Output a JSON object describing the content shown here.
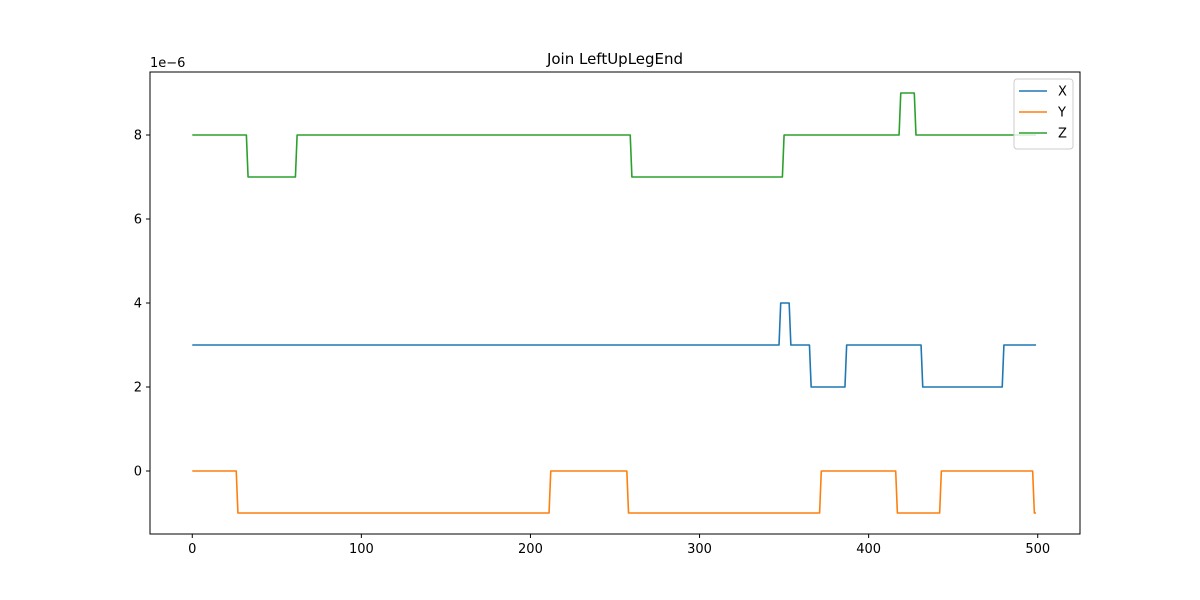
{
  "chart_data": {
    "type": "line",
    "title": "Join LeftUpLegEnd",
    "xlabel": "",
    "ylabel": "",
    "y_offset_text": "1e−6",
    "xlim": [
      -25,
      525
    ],
    "ylim": [
      -1.5,
      9.5
    ],
    "xticks": [
      0,
      100,
      200,
      300,
      400,
      500
    ],
    "yticks": [
      0,
      2,
      4,
      6,
      8
    ],
    "legend_position": "top-right",
    "grid": false,
    "series": [
      {
        "name": "X",
        "color": "#1f77b4",
        "points": [
          [
            0,
            3
          ],
          [
            347,
            3
          ],
          [
            348,
            4
          ],
          [
            353,
            4
          ],
          [
            354,
            3
          ],
          [
            365,
            3
          ],
          [
            366,
            2
          ],
          [
            386,
            2
          ],
          [
            387,
            3
          ],
          [
            431,
            3
          ],
          [
            432,
            2
          ],
          [
            479,
            2
          ],
          [
            480,
            3
          ],
          [
            499,
            3
          ]
        ]
      },
      {
        "name": "Y",
        "color": "#ff7f0e",
        "points": [
          [
            0,
            0
          ],
          [
            26,
            0
          ],
          [
            27,
            -1
          ],
          [
            211,
            -1
          ],
          [
            212,
            0
          ],
          [
            257,
            0
          ],
          [
            258,
            -1
          ],
          [
            371,
            -1
          ],
          [
            372,
            0
          ],
          [
            416,
            0
          ],
          [
            417,
            -1
          ],
          [
            442,
            -1
          ],
          [
            443,
            0
          ],
          [
            497,
            0
          ],
          [
            498,
            -1
          ],
          [
            499,
            -1
          ]
        ]
      },
      {
        "name": "Z",
        "color": "#2ca02c",
        "points": [
          [
            0,
            8
          ],
          [
            32,
            8
          ],
          [
            33,
            7
          ],
          [
            61,
            7
          ],
          [
            62,
            8
          ],
          [
            259,
            8
          ],
          [
            260,
            7
          ],
          [
            349,
            7
          ],
          [
            350,
            8
          ],
          [
            418,
            8
          ],
          [
            419,
            9
          ],
          [
            427,
            9
          ],
          [
            428,
            8
          ],
          [
            499,
            8
          ]
        ]
      }
    ]
  }
}
